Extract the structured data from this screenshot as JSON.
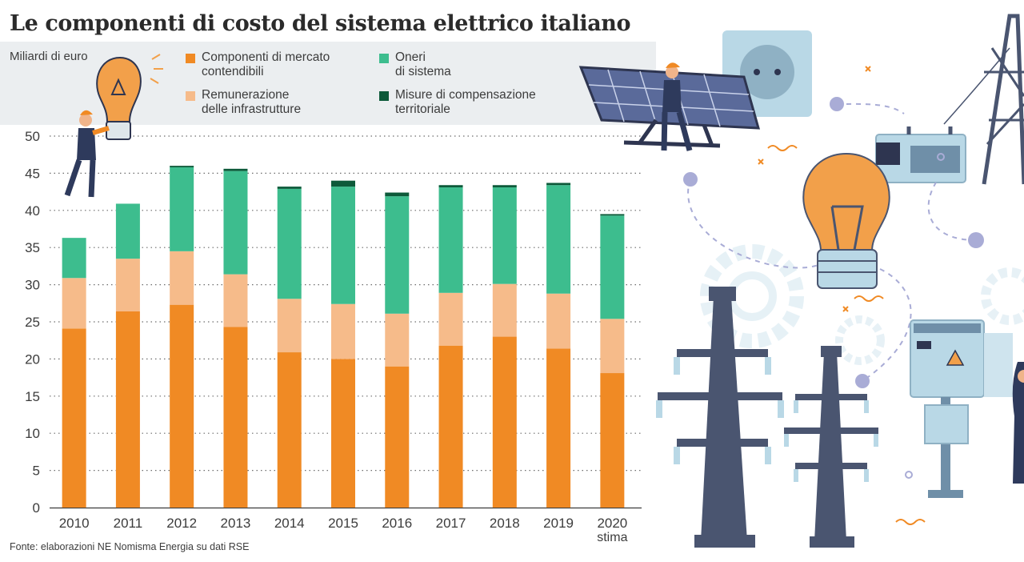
{
  "title": "Le componenti di costo del sistema elettrico italiano",
  "unit_label": "Miliardi di euro",
  "source": "Fonte: elaborazioni NE Nomisma Energia su dati RSE",
  "legend": [
    {
      "label": "Componenti di mercato\ncontendibili",
      "color": "#f08a24"
    },
    {
      "label": "Remunerazione\ndelle infrastrutture",
      "color": "#f6bb8a"
    },
    {
      "label": "Oneri\ndi sistema",
      "color": "#3dbd8e"
    },
    {
      "label": "Misure di compensazione\nterritoriale",
      "color": "#0d5a3a"
    }
  ],
  "colors": {
    "components": "#f08a24",
    "infrastructure": "#f6bb8a",
    "system_charges": "#3dbd8e",
    "compensation": "#0d5a3a",
    "tower": "#4a5570",
    "panel": "#5a6a9a",
    "bulb": "#f2a04a",
    "box": "#b9d8e6",
    "dot": "#a9acd6"
  },
  "chart_data": {
    "type": "bar",
    "stacked": true,
    "categories": [
      "2010",
      "2011",
      "2012",
      "2013",
      "2014",
      "2015",
      "2016",
      "2017",
      "2018",
      "2019",
      "2020"
    ],
    "category_sublabels": {
      "2020": "stima"
    },
    "ylim": [
      0,
      50
    ],
    "yticks": [
      0,
      5,
      10,
      15,
      20,
      25,
      30,
      35,
      40,
      45,
      50
    ],
    "ylabel": "Miliardi di euro",
    "xlabel": "",
    "grid": "horizontal dotted",
    "legend_position": "top",
    "series": [
      {
        "name": "Componenti di mercato contendibili",
        "values": [
          24.1,
          26.4,
          27.3,
          24.3,
          20.9,
          20.0,
          19.0,
          21.8,
          23.0,
          21.4,
          18.1
        ]
      },
      {
        "name": "Remunerazione delle infrastrutture",
        "values": [
          6.8,
          7.1,
          7.2,
          7.1,
          7.2,
          7.4,
          7.1,
          7.1,
          7.1,
          7.4,
          7.3
        ]
      },
      {
        "name": "Oneri di sistema",
        "values": [
          5.4,
          7.4,
          11.3,
          13.9,
          14.8,
          15.8,
          15.8,
          14.2,
          13.0,
          14.6,
          13.9
        ]
      },
      {
        "name": "Misure di compensazione territoriale",
        "values": [
          0.0,
          0.0,
          0.2,
          0.3,
          0.3,
          0.8,
          0.5,
          0.3,
          0.3,
          0.3,
          0.2
        ]
      }
    ]
  }
}
